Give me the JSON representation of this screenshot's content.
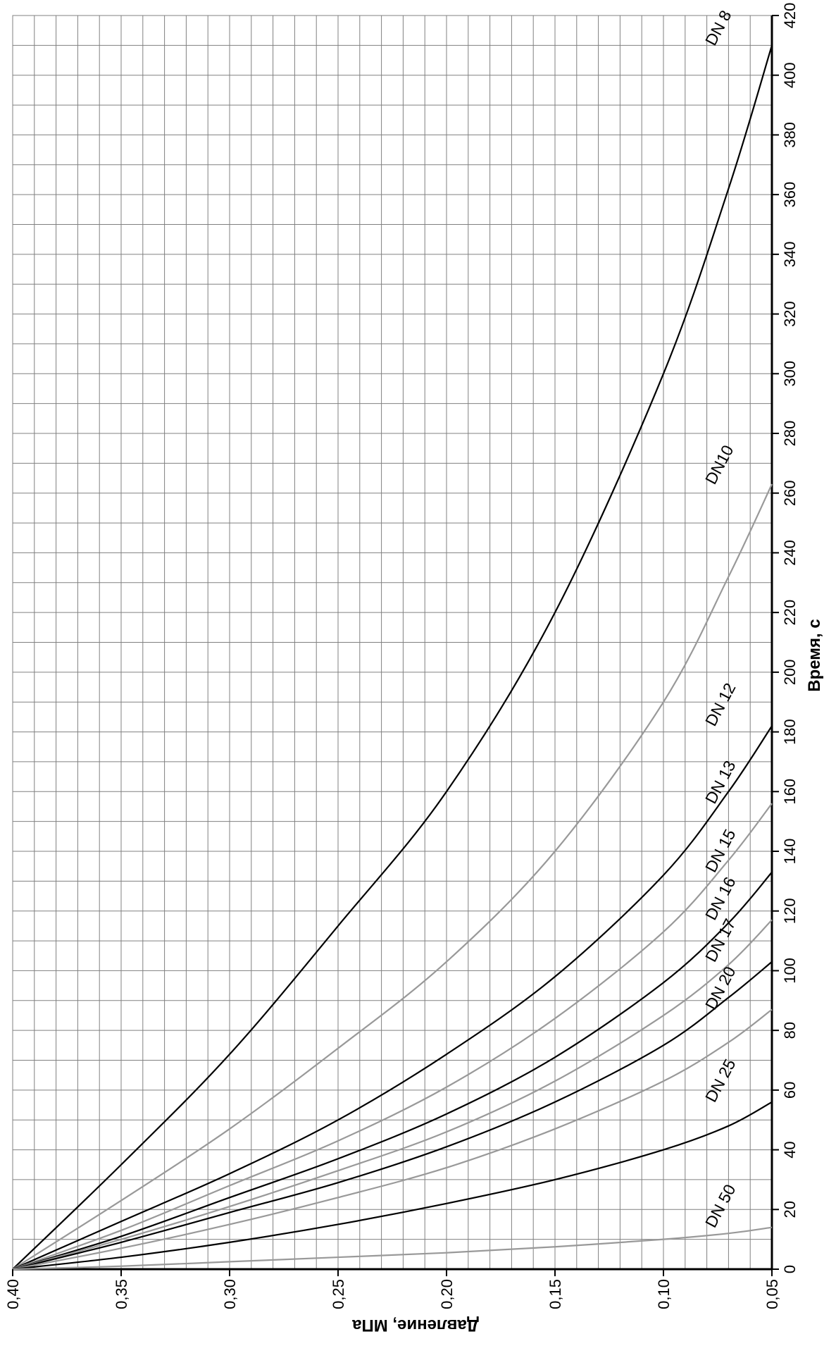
{
  "chart_data": {
    "type": "line",
    "orientation": "rotated-90",
    "xlabel": "Давление, МПа",
    "ylabel": "Время, с",
    "xlim": [
      0.05,
      0.4
    ],
    "x_reversed": true,
    "ylim": [
      0,
      420
    ],
    "x_ticks": [
      "0,40",
      "0,35",
      "0,30",
      "0,25",
      "0,20",
      "0,15",
      "0,10",
      "0,05"
    ],
    "y_ticks": [
      "0",
      "20",
      "40",
      "60",
      "80",
      "100",
      "120",
      "140",
      "160",
      "180",
      "200",
      "220",
      "240",
      "260",
      "280",
      "300",
      "320",
      "340",
      "360",
      "380",
      "400",
      "420"
    ],
    "y_axis_side": "right",
    "grid": true,
    "colors": {
      "dark": "#000000",
      "gray": "#999999",
      "grid": "#808080"
    },
    "series": [
      {
        "name": "DN 8",
        "label": "DN 8",
        "color": "dark",
        "x": [
          0.4,
          0.35,
          0.3,
          0.25,
          0.2,
          0.15,
          0.1,
          0.07,
          0.05
        ],
        "y": [
          0,
          35,
          72,
          115,
          160,
          220,
          300,
          362,
          410
        ]
      },
      {
        "name": "DN10",
        "label": "DN10",
        "color": "gray",
        "x": [
          0.4,
          0.35,
          0.3,
          0.25,
          0.2,
          0.15,
          0.1,
          0.07,
          0.05
        ],
        "y": [
          0,
          23,
          47,
          74,
          103,
          140,
          190,
          232,
          263
        ]
      },
      {
        "name": "DN 12",
        "label": "DN 12",
        "color": "dark",
        "x": [
          0.4,
          0.35,
          0.3,
          0.25,
          0.2,
          0.15,
          0.1,
          0.07,
          0.05
        ],
        "y": [
          0,
          16,
          32,
          50,
          72,
          98,
          132,
          160,
          182
        ]
      },
      {
        "name": "DN 13",
        "label": "DN 13",
        "color": "gray",
        "x": [
          0.4,
          0.35,
          0.3,
          0.25,
          0.2,
          0.15,
          0.1,
          0.07,
          0.05
        ],
        "y": [
          0,
          13,
          28,
          43,
          61,
          84,
          113,
          137,
          156
        ]
      },
      {
        "name": "DN 15",
        "label": "DN 15",
        "color": "dark",
        "x": [
          0.4,
          0.35,
          0.3,
          0.25,
          0.2,
          0.15,
          0.1,
          0.07,
          0.05
        ],
        "y": [
          0,
          11,
          24,
          37,
          52,
          71,
          96,
          116,
          133
        ]
      },
      {
        "name": "DN 16",
        "label": "DN 16",
        "color": "gray",
        "x": [
          0.4,
          0.35,
          0.3,
          0.25,
          0.2,
          0.15,
          0.1,
          0.07,
          0.05
        ],
        "y": [
          0,
          10,
          21,
          33,
          46,
          63,
          85,
          102,
          117
        ]
      },
      {
        "name": "DN 17",
        "label": "DN 17",
        "color": "dark",
        "x": [
          0.4,
          0.35,
          0.3,
          0.25,
          0.2,
          0.15,
          0.1,
          0.07,
          0.05
        ],
        "y": [
          0,
          9,
          19,
          29,
          41,
          56,
          75,
          91,
          103
        ]
      },
      {
        "name": "DN 20",
        "label": "DN 20",
        "color": "gray",
        "x": [
          0.4,
          0.35,
          0.3,
          0.25,
          0.2,
          0.15,
          0.1,
          0.07,
          0.05
        ],
        "y": [
          0,
          7,
          15,
          24,
          34,
          47,
          63,
          76,
          87
        ]
      },
      {
        "name": "DN 25",
        "label": "DN 25",
        "color": "dark",
        "x": [
          0.4,
          0.35,
          0.3,
          0.25,
          0.2,
          0.15,
          0.1,
          0.07,
          0.05
        ],
        "y": [
          0,
          4,
          9,
          15,
          22,
          30,
          40,
          48,
          56
        ]
      },
      {
        "name": "DN 50",
        "label": "DN 50",
        "color": "gray",
        "x": [
          0.4,
          0.35,
          0.3,
          0.25,
          0.2,
          0.15,
          0.1,
          0.07,
          0.05
        ],
        "y": [
          0,
          1,
          2.5,
          4,
          5.5,
          7.5,
          10,
          12,
          14
        ]
      }
    ]
  }
}
